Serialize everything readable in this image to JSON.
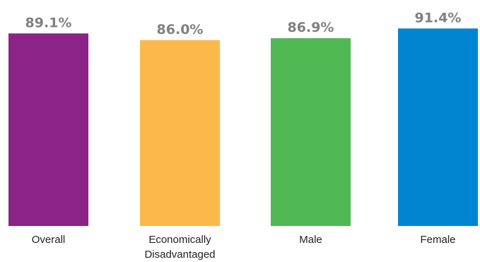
{
  "chart_data": {
    "type": "bar",
    "title": "",
    "xlabel": "",
    "ylabel": "",
    "categories": [
      [
        "Overall"
      ],
      [
        "Economically",
        "Disadvantaged"
      ],
      [
        "Male"
      ],
      [
        "Female"
      ]
    ],
    "values": [
      89.1,
      86.0,
      86.9,
      91.4
    ],
    "value_labels": [
      "89.1%",
      "86.0%",
      "86.9%",
      "91.4%"
    ],
    "colors": [
      "#8b2388",
      "#fcb94b",
      "#4fb853",
      "#0086d1"
    ],
    "axes_visible": false,
    "grid": false,
    "legend": "none"
  }
}
